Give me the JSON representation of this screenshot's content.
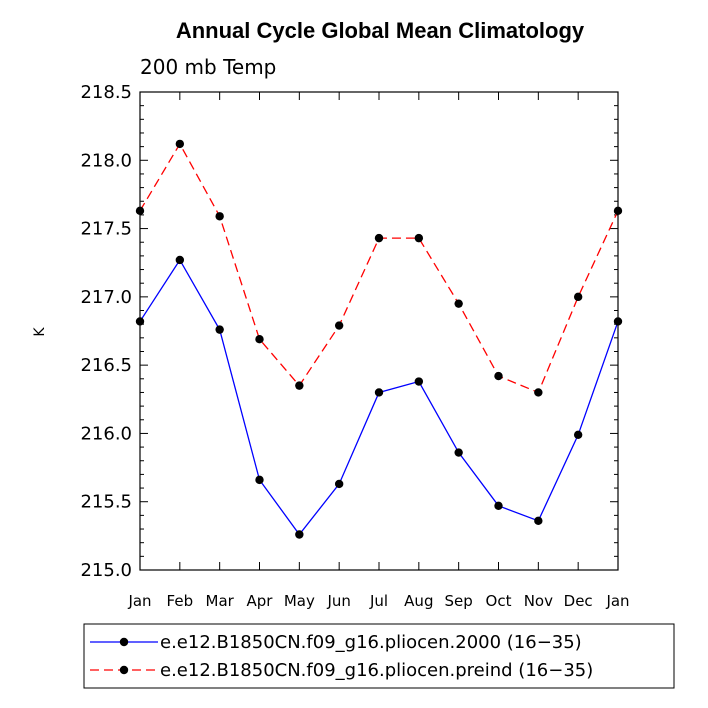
{
  "chart_data": {
    "type": "line",
    "title": "Annual Cycle Global Mean Climatology",
    "subtitle": "200 mb Temp",
    "xlabel": "",
    "ylabel": "K",
    "categories": [
      "Jan",
      "Feb",
      "Mar",
      "Apr",
      "May",
      "Jun",
      "Jul",
      "Aug",
      "Sep",
      "Oct",
      "Nov",
      "Dec",
      "Jan"
    ],
    "ylim": [
      215.0,
      218.5
    ],
    "yticks": [
      215.0,
      215.5,
      216.0,
      216.5,
      217.0,
      217.5,
      218.0,
      218.5
    ],
    "ytick_labels": [
      "215.0",
      "215.5",
      "216.0",
      "216.5",
      "217.0",
      "217.5",
      "218.0",
      "218.5"
    ],
    "series": [
      {
        "name": "e.e12.B1850CN.f09_g16.pliocen.2000 (16−35)",
        "color": "#0000ff",
        "dash": "solid",
        "values": [
          216.82,
          217.27,
          216.76,
          215.66,
          215.26,
          215.63,
          216.3,
          216.38,
          215.86,
          215.47,
          215.36,
          215.99,
          216.82
        ]
      },
      {
        "name": "e.e12.B1850CN.f09_g16.pliocen.preind (16−35)",
        "color": "#ff0000",
        "dash": "dashed",
        "values": [
          217.63,
          218.12,
          217.59,
          216.69,
          216.35,
          216.79,
          217.43,
          217.43,
          216.95,
          216.42,
          216.3,
          217.0,
          217.63
        ]
      }
    ],
    "legend_position": "bottom"
  }
}
